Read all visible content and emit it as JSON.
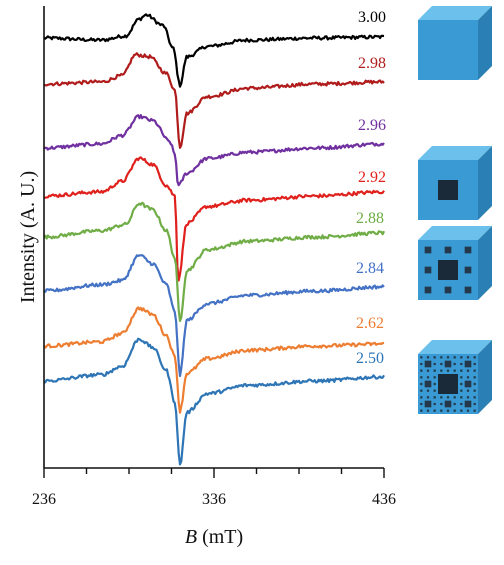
{
  "chart_data": {
    "type": "line",
    "xlabel_symbol": "B",
    "xlabel_unit": "(mT)",
    "ylabel": "Intensity (A. U.)",
    "xlim": [
      236,
      436
    ],
    "x_ticks": [
      "236",
      "336",
      "436"
    ],
    "y_ticks": [],
    "grid": false,
    "legend": "none",
    "series": [
      {
        "name": "3.00",
        "color": "#000000",
        "points": [
          [
            236,
            0
          ],
          [
            270,
            -2
          ],
          [
            284,
            2
          ],
          [
            292,
            18
          ],
          [
            296,
            22
          ],
          [
            306,
            12
          ],
          [
            312,
            -10
          ],
          [
            316,
            -45
          ],
          [
            320,
            -18
          ],
          [
            332,
            -8
          ],
          [
            356,
            -2
          ],
          [
            396,
            0
          ],
          [
            436,
            1
          ]
        ]
      },
      {
        "name": "2.98",
        "color": "#b01c1c",
        "points": [
          [
            236,
            0
          ],
          [
            270,
            2
          ],
          [
            282,
            8
          ],
          [
            290,
            28
          ],
          [
            298,
            26
          ],
          [
            308,
            10
          ],
          [
            313,
            -6
          ],
          [
            316,
            -60
          ],
          [
            320,
            -28
          ],
          [
            332,
            -12
          ],
          [
            356,
            -4
          ],
          [
            396,
            0
          ],
          [
            436,
            2
          ]
        ]
      },
      {
        "name": "2.96",
        "color": "#7030a0",
        "points": [
          [
            236,
            0
          ],
          [
            270,
            4
          ],
          [
            282,
            12
          ],
          [
            292,
            30
          ],
          [
            300,
            26
          ],
          [
            310,
            6
          ],
          [
            313,
            -6
          ],
          [
            315,
            -36
          ],
          [
            320,
            -24
          ],
          [
            332,
            -10
          ],
          [
            356,
            -4
          ],
          [
            396,
            0
          ],
          [
            436,
            4
          ]
        ]
      },
      {
        "name": "2.92",
        "color": "#e0201c",
        "points": [
          [
            236,
            0
          ],
          [
            270,
            4
          ],
          [
            282,
            14
          ],
          [
            292,
            36
          ],
          [
            300,
            30
          ],
          [
            308,
            10
          ],
          [
            313,
            0
          ],
          [
            315,
            -80
          ],
          [
            320,
            -26
          ],
          [
            332,
            -10
          ],
          [
            356,
            -4
          ],
          [
            396,
            0
          ],
          [
            436,
            4
          ]
        ]
      },
      {
        "name": "2.88",
        "color": "#70ad47",
        "points": [
          [
            236,
            0
          ],
          [
            270,
            6
          ],
          [
            284,
            12
          ],
          [
            292,
            32
          ],
          [
            300,
            26
          ],
          [
            308,
            6
          ],
          [
            313,
            -20
          ],
          [
            316,
            -80
          ],
          [
            320,
            -32
          ],
          [
            332,
            -12
          ],
          [
            356,
            -4
          ],
          [
            396,
            0
          ],
          [
            436,
            4
          ]
        ]
      },
      {
        "name": "2.84",
        "color": "#4472c4",
        "points": [
          [
            236,
            0
          ],
          [
            270,
            6
          ],
          [
            282,
            10
          ],
          [
            292,
            34
          ],
          [
            300,
            26
          ],
          [
            308,
            6
          ],
          [
            313,
            -20
          ],
          [
            316,
            -80
          ],
          [
            320,
            -28
          ],
          [
            332,
            -12
          ],
          [
            356,
            -4
          ],
          [
            396,
            0
          ],
          [
            436,
            4
          ]
        ]
      },
      {
        "name": "2.62",
        "color": "#ed7d31",
        "points": [
          [
            236,
            0
          ],
          [
            270,
            4
          ],
          [
            282,
            12
          ],
          [
            292,
            36
          ],
          [
            300,
            30
          ],
          [
            308,
            10
          ],
          [
            313,
            -10
          ],
          [
            316,
            -62
          ],
          [
            320,
            -26
          ],
          [
            332,
            -12
          ],
          [
            356,
            -4
          ],
          [
            396,
            0
          ],
          [
            436,
            2
          ]
        ]
      },
      {
        "name": "2.50",
        "color": "#2e75b6",
        "points": [
          [
            236,
            0
          ],
          [
            270,
            6
          ],
          [
            282,
            14
          ],
          [
            292,
            40
          ],
          [
            300,
            32
          ],
          [
            308,
            10
          ],
          [
            313,
            -20
          ],
          [
            316,
            -80
          ],
          [
            320,
            -30
          ],
          [
            332,
            -12
          ],
          [
            356,
            -4
          ],
          [
            396,
            0
          ],
          [
            436,
            4
          ]
        ]
      }
    ]
  },
  "illustrations": [
    {
      "name": "menger-cube-level-0",
      "level": 0,
      "color": "#3a9ad4"
    },
    {
      "name": "menger-cube-level-1",
      "level": 1,
      "color": "#3a9ad4"
    },
    {
      "name": "menger-cube-level-2",
      "level": 2,
      "color": "#3a9ad4"
    },
    {
      "name": "menger-cube-level-3",
      "level": 3,
      "color": "#3a9ad4"
    }
  ]
}
